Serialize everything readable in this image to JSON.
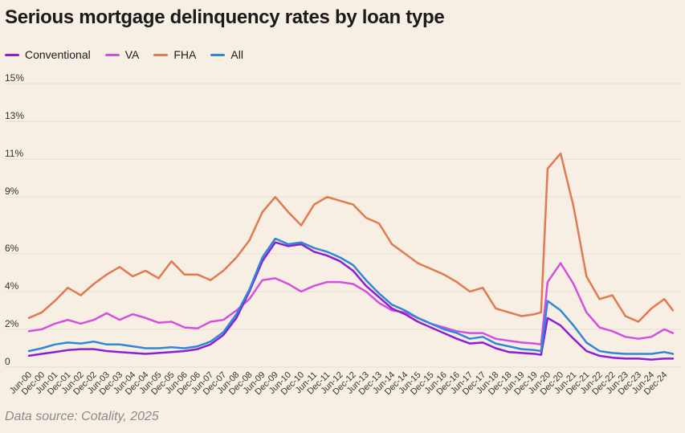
{
  "chart_data": {
    "type": "line",
    "title": "Serious mortgage delinquency rates by loan type",
    "source": "Data source: Cotality, 2025",
    "xlabel": "",
    "ylabel": "",
    "ylim": [
      0,
      15
    ],
    "yticks": [
      {
        "value": 0,
        "label": "0"
      },
      {
        "value": 2,
        "label": "2%"
      },
      {
        "value": 4,
        "label": "4%"
      },
      {
        "value": 6,
        "label": "6%"
      },
      {
        "value": 9,
        "label": "9%"
      },
      {
        "value": 11,
        "label": "11%"
      },
      {
        "value": 13,
        "label": "13%"
      },
      {
        "value": 15,
        "label": "15%"
      }
    ],
    "xlim": [
      "Jun-00",
      "Apr-25"
    ],
    "xticks": [
      "Jun-00",
      "Dec-00",
      "Jun-01",
      "Dec-01",
      "Jun-02",
      "Dec-02",
      "Jun-03",
      "Dec-03",
      "Jun-04",
      "Dec-04",
      "Jun-05",
      "Dec-05",
      "Jun-06",
      "Dec-06",
      "Jun-07",
      "Dec-07",
      "Jun-08",
      "Dec-08",
      "Jun-09",
      "Dec-09",
      "Jun-10",
      "Dec-10",
      "Jun-11",
      "Dec-11",
      "Jun-12",
      "Dec-12",
      "Jun-13",
      "Dec-13",
      "Jun-14",
      "Dec-14",
      "Jun-15",
      "Dec-15",
      "Jun-16",
      "Dec-16",
      "Jun-17",
      "Dec-17",
      "Jun-18",
      "Dec-18",
      "Jun-19",
      "Dec-19",
      "Jun-20",
      "Dec-20",
      "Jun-21",
      "Dec-21",
      "Jun-22",
      "Dec-22",
      "Jun-23",
      "Dec-23",
      "Jun-24",
      "Dec-24"
    ],
    "legend_position": "top-left",
    "grid": true,
    "series": [
      {
        "name": "Conventional",
        "color": "#8b1fd4",
        "points": [
          [
            "Jun-00",
            0.6
          ],
          [
            "Dec-00",
            0.7
          ],
          [
            "Jun-01",
            0.8
          ],
          [
            "Dec-01",
            0.9
          ],
          [
            "Jun-02",
            0.95
          ],
          [
            "Dec-02",
            0.95
          ],
          [
            "Jun-03",
            0.85
          ],
          [
            "Dec-03",
            0.8
          ],
          [
            "Jun-04",
            0.75
          ],
          [
            "Dec-04",
            0.7
          ],
          [
            "Jun-05",
            0.75
          ],
          [
            "Dec-05",
            0.8
          ],
          [
            "Jun-06",
            0.85
          ],
          [
            "Dec-06",
            0.95
          ],
          [
            "Jun-07",
            1.2
          ],
          [
            "Dec-07",
            1.7
          ],
          [
            "Jun-08",
            2.6
          ],
          [
            "Dec-08",
            4.0
          ],
          [
            "Jun-09",
            5.6
          ],
          [
            "Dec-09",
            6.6
          ],
          [
            "Jun-10",
            6.4
          ],
          [
            "Dec-10",
            6.5
          ],
          [
            "Jun-11",
            6.1
          ],
          [
            "Dec-11",
            5.9
          ],
          [
            "Jun-12",
            5.6
          ],
          [
            "Dec-12",
            5.1
          ],
          [
            "Jun-13",
            4.3
          ],
          [
            "Dec-13",
            3.7
          ],
          [
            "Jun-14",
            3.1
          ],
          [
            "Dec-14",
            2.8
          ],
          [
            "Jun-15",
            2.4
          ],
          [
            "Dec-15",
            2.1
          ],
          [
            "Jun-16",
            1.8
          ],
          [
            "Dec-16",
            1.5
          ],
          [
            "Jun-17",
            1.25
          ],
          [
            "Dec-17",
            1.3
          ],
          [
            "Jun-18",
            1.0
          ],
          [
            "Dec-18",
            0.8
          ],
          [
            "Jun-19",
            0.75
          ],
          [
            "Dec-19",
            0.7
          ],
          [
            "Mar-20",
            0.65
          ],
          [
            "Jun-20",
            2.6
          ],
          [
            "Dec-20",
            2.2
          ],
          [
            "Jun-21",
            1.5
          ],
          [
            "Dec-21",
            0.85
          ],
          [
            "Jun-22",
            0.6
          ],
          [
            "Dec-22",
            0.5
          ],
          [
            "Jun-23",
            0.45
          ],
          [
            "Dec-23",
            0.45
          ],
          [
            "Jun-24",
            0.4
          ],
          [
            "Dec-24",
            0.45
          ],
          [
            "Apr-25",
            0.45
          ]
        ]
      },
      {
        "name": "VA",
        "color": "#d34fdf",
        "points": [
          [
            "Jun-00",
            1.9
          ],
          [
            "Dec-00",
            2.0
          ],
          [
            "Jun-01",
            2.3
          ],
          [
            "Dec-01",
            2.5
          ],
          [
            "Jun-02",
            2.3
          ],
          [
            "Dec-02",
            2.5
          ],
          [
            "Jun-03",
            2.85
          ],
          [
            "Dec-03",
            2.5
          ],
          [
            "Jun-04",
            2.8
          ],
          [
            "Dec-04",
            2.6
          ],
          [
            "Jun-05",
            2.35
          ],
          [
            "Dec-05",
            2.4
          ],
          [
            "Jun-06",
            2.1
          ],
          [
            "Dec-06",
            2.05
          ],
          [
            "Jun-07",
            2.4
          ],
          [
            "Dec-07",
            2.5
          ],
          [
            "Jun-08",
            3.0
          ],
          [
            "Dec-08",
            3.6
          ],
          [
            "Jun-09",
            4.6
          ],
          [
            "Dec-09",
            4.7
          ],
          [
            "Jun-10",
            4.4
          ],
          [
            "Dec-10",
            4.0
          ],
          [
            "Jun-11",
            4.3
          ],
          [
            "Dec-11",
            4.5
          ],
          [
            "Jun-12",
            4.5
          ],
          [
            "Dec-12",
            4.4
          ],
          [
            "Jun-13",
            4.0
          ],
          [
            "Dec-13",
            3.4
          ],
          [
            "Jun-14",
            3.0
          ],
          [
            "Dec-14",
            2.9
          ],
          [
            "Jun-15",
            2.6
          ],
          [
            "Dec-15",
            2.3
          ],
          [
            "Jun-16",
            2.1
          ],
          [
            "Dec-16",
            1.9
          ],
          [
            "Jun-17",
            1.8
          ],
          [
            "Dec-17",
            1.8
          ],
          [
            "Jun-18",
            1.5
          ],
          [
            "Dec-18",
            1.4
          ],
          [
            "Jun-19",
            1.3
          ],
          [
            "Dec-19",
            1.25
          ],
          [
            "Mar-20",
            1.2
          ],
          [
            "Jun-20",
            4.5
          ],
          [
            "Dec-20",
            5.5
          ],
          [
            "Jun-21",
            4.4
          ],
          [
            "Dec-21",
            2.9
          ],
          [
            "Jun-22",
            2.1
          ],
          [
            "Dec-22",
            1.9
          ],
          [
            "Jun-23",
            1.6
          ],
          [
            "Dec-23",
            1.5
          ],
          [
            "Jun-24",
            1.6
          ],
          [
            "Dec-24",
            2.0
          ],
          [
            "Apr-25",
            1.8
          ]
        ]
      },
      {
        "name": "FHA",
        "color": "#e07a4f",
        "points": [
          [
            "Jun-00",
            2.6
          ],
          [
            "Dec-00",
            2.9
          ],
          [
            "Jun-01",
            3.5
          ],
          [
            "Dec-01",
            4.2
          ],
          [
            "Jun-02",
            3.8
          ],
          [
            "Dec-02",
            4.4
          ],
          [
            "Jun-03",
            4.9
          ],
          [
            "Dec-03",
            5.3
          ],
          [
            "Jun-04",
            4.8
          ],
          [
            "Dec-04",
            5.1
          ],
          [
            "Jun-05",
            4.7
          ],
          [
            "Dec-05",
            5.6
          ],
          [
            "Jun-06",
            4.9
          ],
          [
            "Dec-06",
            4.9
          ],
          [
            "Jun-07",
            4.6
          ],
          [
            "Dec-07",
            5.1
          ],
          [
            "Jun-08",
            5.8
          ],
          [
            "Dec-08",
            6.7
          ],
          [
            "Jun-09",
            8.2
          ],
          [
            "Dec-09",
            9.0
          ],
          [
            "Jun-10",
            8.2
          ],
          [
            "Dec-10",
            7.5
          ],
          [
            "Jun-11",
            8.6
          ],
          [
            "Dec-11",
            9.0
          ],
          [
            "Jun-12",
            8.8
          ],
          [
            "Dec-12",
            8.6
          ],
          [
            "Jun-13",
            7.9
          ],
          [
            "Dec-13",
            7.6
          ],
          [
            "Jun-14",
            6.5
          ],
          [
            "Dec-14",
            6.0
          ],
          [
            "Jun-15",
            5.5
          ],
          [
            "Dec-15",
            5.2
          ],
          [
            "Jun-16",
            4.9
          ],
          [
            "Dec-16",
            4.5
          ],
          [
            "Jun-17",
            4.0
          ],
          [
            "Dec-17",
            4.2
          ],
          [
            "Jun-18",
            3.1
          ],
          [
            "Dec-18",
            2.9
          ],
          [
            "Jun-19",
            2.7
          ],
          [
            "Dec-19",
            2.8
          ],
          [
            "Mar-20",
            2.9
          ],
          [
            "Jun-20",
            10.5
          ],
          [
            "Dec-20",
            11.3
          ],
          [
            "Jun-21",
            8.5
          ],
          [
            "Dec-21",
            4.8
          ],
          [
            "Jun-22",
            3.6
          ],
          [
            "Dec-22",
            3.8
          ],
          [
            "Jun-23",
            2.7
          ],
          [
            "Dec-23",
            2.4
          ],
          [
            "Jun-24",
            3.1
          ],
          [
            "Dec-24",
            3.6
          ],
          [
            "Apr-25",
            3.0
          ]
        ]
      },
      {
        "name": "All",
        "color": "#2f87d6",
        "points": [
          [
            "Jun-00",
            0.85
          ],
          [
            "Dec-00",
            1.0
          ],
          [
            "Jun-01",
            1.2
          ],
          [
            "Dec-01",
            1.3
          ],
          [
            "Jun-02",
            1.25
          ],
          [
            "Dec-02",
            1.35
          ],
          [
            "Jun-03",
            1.2
          ],
          [
            "Dec-03",
            1.2
          ],
          [
            "Jun-04",
            1.1
          ],
          [
            "Dec-04",
            1.0
          ],
          [
            "Jun-05",
            1.0
          ],
          [
            "Dec-05",
            1.05
          ],
          [
            "Jun-06",
            1.0
          ],
          [
            "Dec-06",
            1.1
          ],
          [
            "Jun-07",
            1.35
          ],
          [
            "Dec-07",
            1.85
          ],
          [
            "Jun-08",
            2.8
          ],
          [
            "Dec-08",
            4.1
          ],
          [
            "Jun-09",
            5.8
          ],
          [
            "Dec-09",
            6.8
          ],
          [
            "Jun-10",
            6.5
          ],
          [
            "Dec-10",
            6.6
          ],
          [
            "Jun-11",
            6.3
          ],
          [
            "Dec-11",
            6.1
          ],
          [
            "Jun-12",
            5.8
          ],
          [
            "Dec-12",
            5.4
          ],
          [
            "Jun-13",
            4.6
          ],
          [
            "Dec-13",
            3.9
          ],
          [
            "Jun-14",
            3.3
          ],
          [
            "Dec-14",
            3.0
          ],
          [
            "Jun-15",
            2.6
          ],
          [
            "Dec-15",
            2.3
          ],
          [
            "Jun-16",
            2.0
          ],
          [
            "Dec-16",
            1.8
          ],
          [
            "Jun-17",
            1.5
          ],
          [
            "Dec-17",
            1.6
          ],
          [
            "Jun-18",
            1.25
          ],
          [
            "Dec-18",
            1.1
          ],
          [
            "Jun-19",
            0.95
          ],
          [
            "Dec-19",
            0.9
          ],
          [
            "Mar-20",
            0.85
          ],
          [
            "Jun-20",
            3.5
          ],
          [
            "Dec-20",
            3.0
          ],
          [
            "Jun-21",
            2.2
          ],
          [
            "Dec-21",
            1.3
          ],
          [
            "Jun-22",
            0.85
          ],
          [
            "Dec-22",
            0.75
          ],
          [
            "Jun-23",
            0.7
          ],
          [
            "Dec-23",
            0.7
          ],
          [
            "Jun-24",
            0.7
          ],
          [
            "Dec-24",
            0.8
          ],
          [
            "Apr-25",
            0.7
          ]
        ]
      }
    ]
  }
}
